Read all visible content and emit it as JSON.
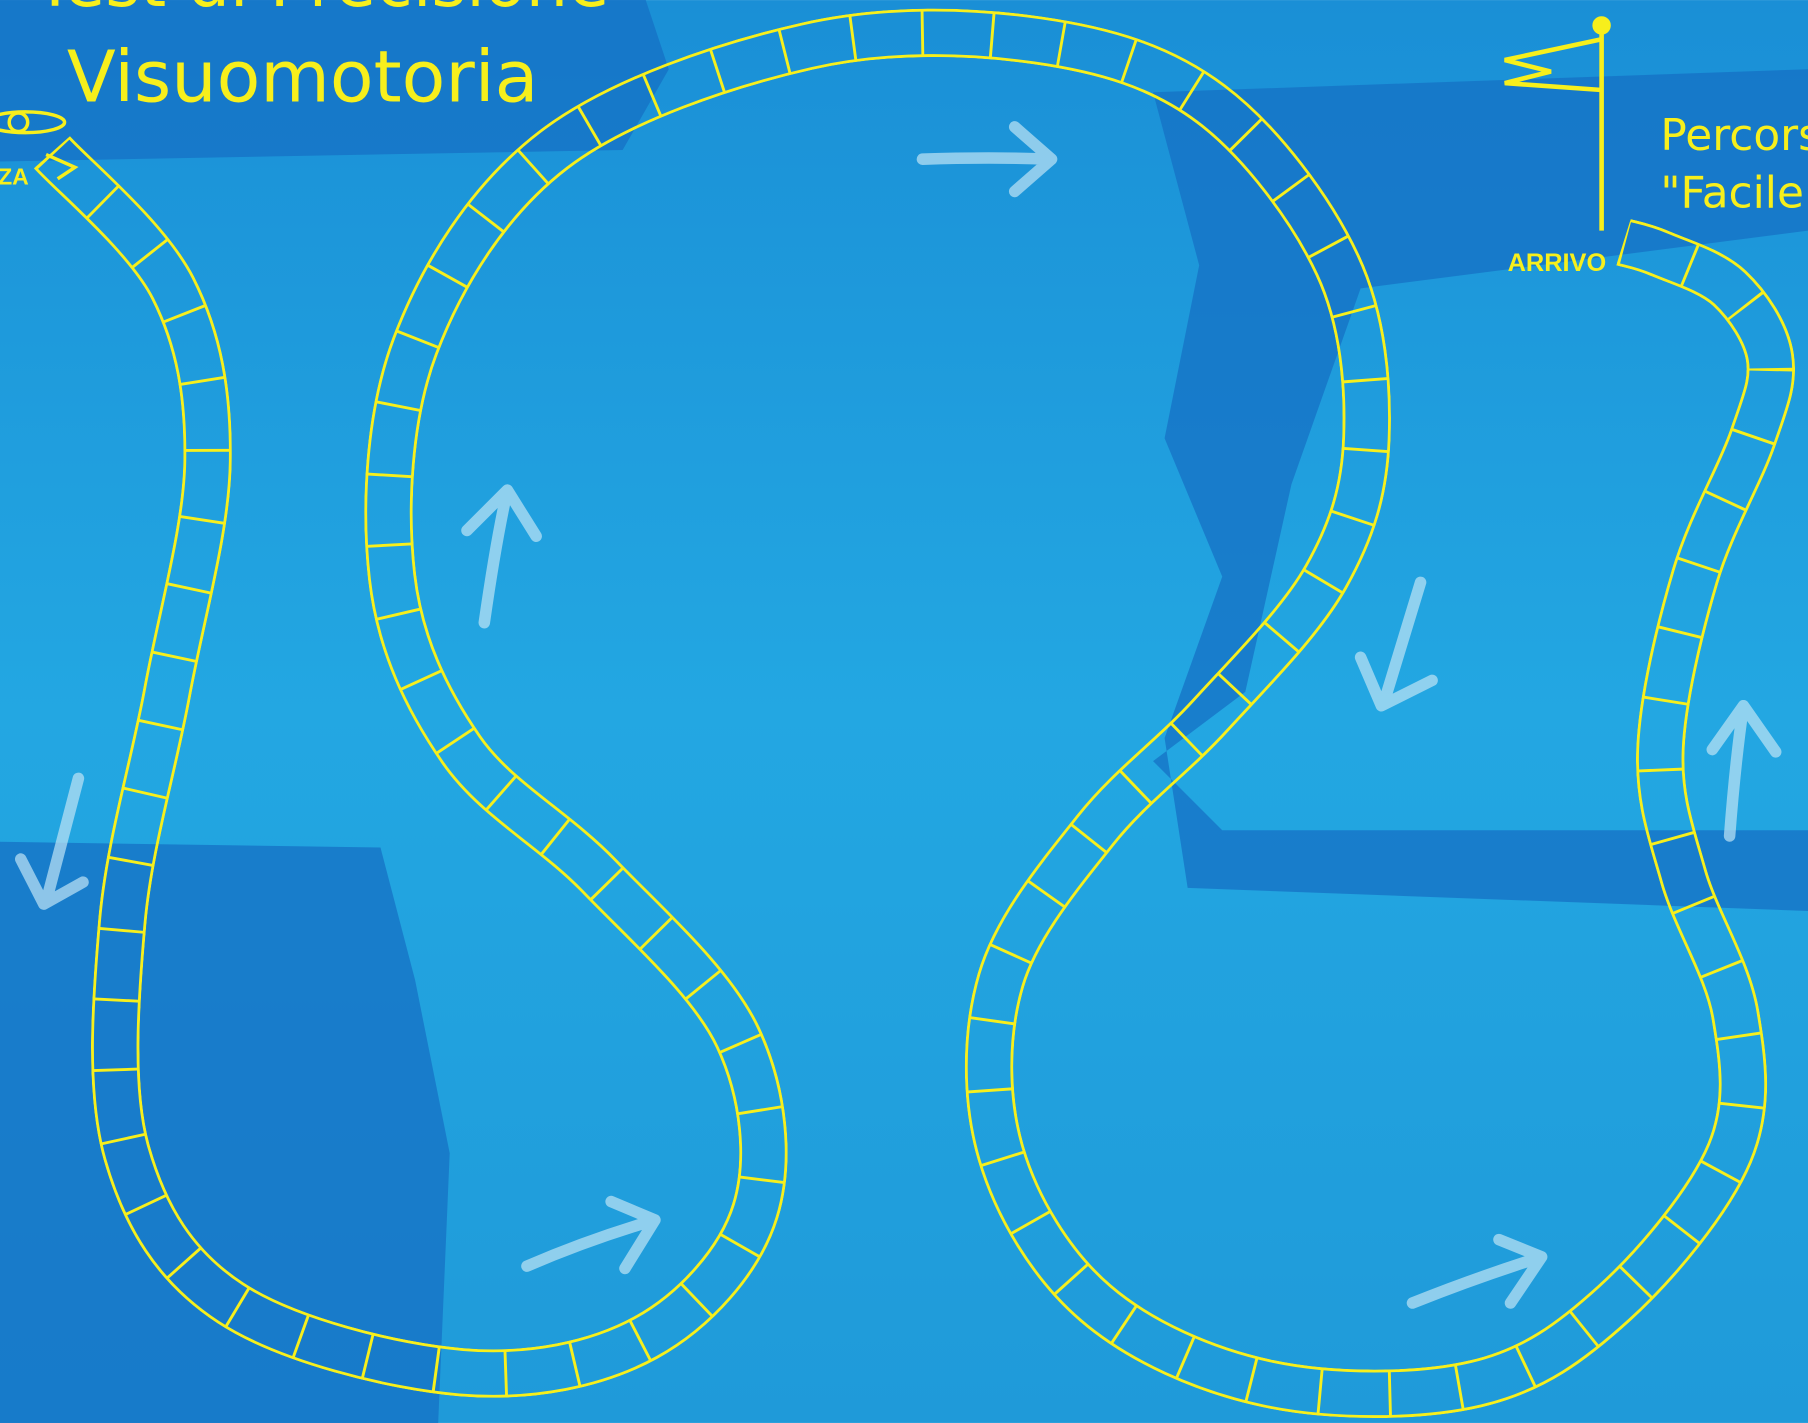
{
  "header": {
    "subtitle": "Test di Precisione",
    "title": "Visuomotoria"
  },
  "track": {
    "start_label": "PARTENZA",
    "finish_label": "ARRIVO"
  },
  "course": {
    "name": "Percorso",
    "level": "\"Facile\""
  }
}
